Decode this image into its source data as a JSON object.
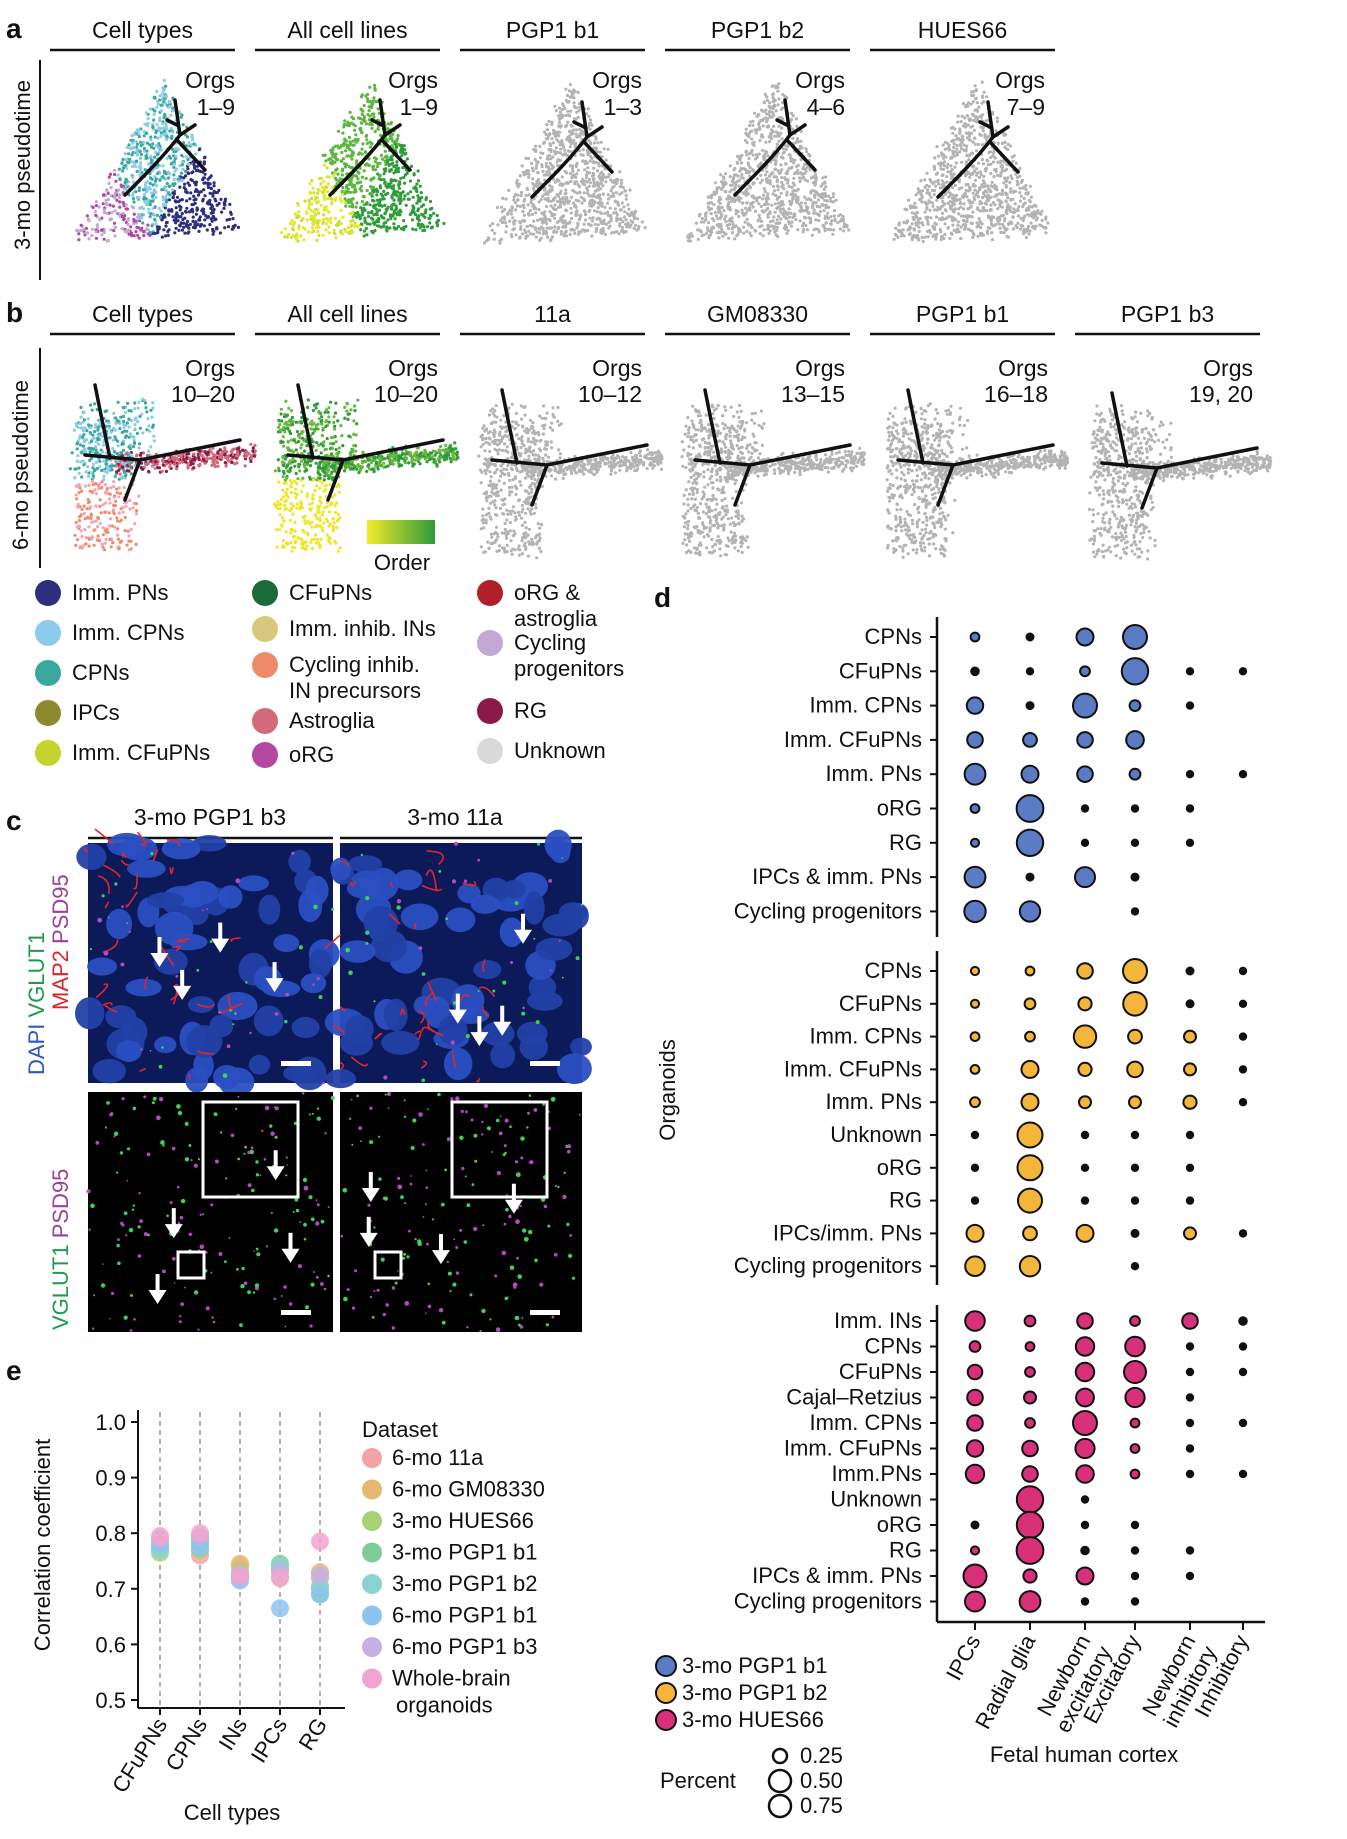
{
  "panel_letters": {
    "a": "a",
    "b": "b",
    "c": "c",
    "d": "d",
    "e": "e"
  },
  "panel_a": {
    "y_label": "3-mo pseudotime",
    "titles": [
      "Cell types",
      "All cell lines",
      "PGP1 b1",
      "PGP1 b2",
      "HUES66"
    ],
    "orgs": [
      [
        "Orgs",
        "1–9"
      ],
      [
        "Orgs",
        "1–9"
      ],
      [
        "Orgs",
        "1–3"
      ],
      [
        "Orgs",
        "4–6"
      ],
      [
        "Orgs",
        "7–9"
      ]
    ]
  },
  "panel_b": {
    "y_label": "6-mo pseudotime",
    "titles": [
      "Cell types",
      "All cell lines",
      "11a",
      "GM08330",
      "PGP1 b1",
      "PGP1 b3"
    ],
    "orgs": [
      [
        "Orgs",
        "10–20"
      ],
      [
        "Orgs",
        "10–20"
      ],
      [
        "Orgs",
        "10–12"
      ],
      [
        "Orgs",
        "13–15"
      ],
      [
        "Orgs",
        "16–18"
      ],
      [
        "Orgs",
        "19, 20"
      ]
    ],
    "order_label": "Order"
  },
  "celltype_legend": [
    {
      "lines": [
        "Imm. PNs"
      ],
      "color": "#2b2f7e"
    },
    {
      "lines": [
        "Imm. CPNs"
      ],
      "color": "#8ccbe9"
    },
    {
      "lines": [
        "CPNs"
      ],
      "color": "#3aa99b"
    },
    {
      "lines": [
        "IPCs"
      ],
      "color": "#8b8a2e"
    },
    {
      "lines": [
        "Imm. CFuPNs"
      ],
      "color": "#c3d42f"
    },
    {
      "lines": [
        "CFuPNs"
      ],
      "color": "#1a6b3a"
    },
    {
      "lines": [
        "Imm. inhib. INs"
      ],
      "color": "#d9c77c"
    },
    {
      "lines": [
        "Cycling inhib.",
        "IN precursors"
      ],
      "color": "#ee8b6a"
    },
    {
      "lines": [
        "Astroglia"
      ],
      "color": "#d26a7a"
    },
    {
      "lines": [
        "oRG"
      ],
      "color": "#b4479e"
    },
    {
      "lines": [
        "oRG &",
        "astroglia"
      ],
      "color": "#b0202a"
    },
    {
      "lines": [
        "Cycling",
        "progenitors"
      ],
      "color": "#c3a7d4"
    },
    {
      "lines": [
        "RG"
      ],
      "color": "#8b1a4a"
    },
    {
      "lines": [
        "Unknown"
      ],
      "color": "#d9d9d9"
    }
  ],
  "panel_c": {
    "titles": [
      "3-mo PGP1 b3",
      "3-mo 11a"
    ],
    "top_stain_label": [
      {
        "text": "DAPI",
        "color": "#2a56c6"
      },
      {
        "text": " VGLUT1",
        "color": "#1f9a4d"
      },
      {
        "text": " MAP2",
        "color": "#d7262b"
      },
      {
        "text": " PSD95",
        "color": "#9a3f9b"
      }
    ],
    "bottom_stain_label": [
      {
        "text": "VGLUT1",
        "color": "#1f9a4d"
      },
      {
        "text": " PSD95",
        "color": "#9a3f9b"
      }
    ]
  },
  "panel_d": {
    "title": "Fetal human cortex",
    "y_label": "Organoids",
    "columns": [
      "IPCs",
      "Radial glia",
      "Newborn excitatory",
      "Excitatory",
      "Newborn inhibitory",
      "Inhibitory"
    ],
    "column_label_lines": [
      [
        "IPCs"
      ],
      [
        "Radial glia"
      ],
      [
        "Newborn",
        "excitatory"
      ],
      [
        "Excitatory"
      ],
      [
        "Newborn",
        "inhibitory"
      ],
      [
        "Inhibitory"
      ]
    ],
    "blocks": [
      {
        "name": "3-mo PGP1 b1",
        "color": "#5b7bc4",
        "rows": [
          "CPNs",
          "CFuPNs",
          "Imm. CPNs",
          "Imm. CFuPNs",
          "Imm. PNs",
          "oRG",
          "RG",
          "IPCs & imm. PNs",
          "Cycling progenitors"
        ],
        "values": [
          [
            0.08,
            0.05,
            0.3,
            0.6,
            0,
            0
          ],
          [
            0.06,
            0.04,
            0.1,
            0.72,
            0.03,
            0.02
          ],
          [
            0.28,
            0.05,
            0.6,
            0.12,
            0.04,
            0
          ],
          [
            0.25,
            0.2,
            0.25,
            0.32,
            0,
            0
          ],
          [
            0.45,
            0.3,
            0.25,
            0.12,
            0.03,
            0.02
          ],
          [
            0.08,
            0.75,
            0.03,
            0.03,
            0.03,
            0
          ],
          [
            0.07,
            0.72,
            0.03,
            0.03,
            0.04,
            0
          ],
          [
            0.45,
            0.05,
            0.42,
            0.05,
            0,
            0
          ],
          [
            0.48,
            0.43,
            0,
            0.03,
            0,
            0
          ]
        ]
      },
      {
        "name": "3-mo PGP1 b2",
        "color": "#f4b63a",
        "rows": [
          "CPNs",
          "CFuPNs",
          "Imm. CPNs",
          "Imm. CFuPNs",
          "Imm. PNs",
          "Unknown",
          "oRG",
          "RG",
          "IPCs/imm. PNs",
          "Cycling progenitors"
        ],
        "values": [
          [
            0.07,
            0.08,
            0.25,
            0.6,
            0.05,
            0.03
          ],
          [
            0.07,
            0.12,
            0.18,
            0.58,
            0.05,
            0.03
          ],
          [
            0.08,
            0.1,
            0.52,
            0.2,
            0.15,
            0.03
          ],
          [
            0.08,
            0.3,
            0.18,
            0.25,
            0.15,
            0.03
          ],
          [
            0.1,
            0.3,
            0.15,
            0.15,
            0.18,
            0.03
          ],
          [
            0.03,
            0.65,
            0.03,
            0.04,
            0.04,
            0
          ],
          [
            0.03,
            0.65,
            0.03,
            0.03,
            0.03,
            0
          ],
          [
            0.04,
            0.6,
            0.03,
            0.03,
            0.03,
            0
          ],
          [
            0.3,
            0.2,
            0.3,
            0.05,
            0.15,
            0.03
          ],
          [
            0.4,
            0.43,
            0,
            0.04,
            0,
            0
          ]
        ]
      },
      {
        "name": "3-mo HUES66",
        "color": "#d8317a",
        "rows": [
          "Imm. INs",
          "CPNs",
          "CFuPNs",
          "Cajal–Retzius",
          "Imm. CPNs",
          "Imm. CFuPNs",
          "Imm.PNs",
          "Unknown",
          "oRG",
          "RG",
          "IPCs & imm. PNs",
          "Cycling progenitors"
        ],
        "values": [
          [
            0.4,
            0.12,
            0.25,
            0.1,
            0.25,
            0.06
          ],
          [
            0.12,
            0.08,
            0.35,
            0.4,
            0.03,
            0.03
          ],
          [
            0.22,
            0.1,
            0.35,
            0.5,
            0.03,
            0.03
          ],
          [
            0.25,
            0.15,
            0.33,
            0.38,
            0.03,
            0
          ],
          [
            0.25,
            0.1,
            0.6,
            0.08,
            0.03,
            0.03
          ],
          [
            0.28,
            0.25,
            0.38,
            0.08,
            0.03,
            0
          ],
          [
            0.35,
            0.25,
            0.32,
            0.08,
            0.03,
            0.03
          ],
          [
            0,
            0.72,
            0.03,
            0,
            0,
            0
          ],
          [
            0.05,
            0.72,
            0.03,
            0.03,
            0,
            0
          ],
          [
            0.07,
            0.75,
            0.06,
            0.03,
            0.03,
            0
          ],
          [
            0.55,
            0.18,
            0.3,
            0.03,
            0.03,
            0
          ],
          [
            0.42,
            0.45,
            0.02,
            0.03,
            0,
            0
          ]
        ]
      }
    ],
    "size_legend": {
      "title": "Percent",
      "labels": [
        "0.25",
        "0.50",
        "0.75"
      ]
    }
  },
  "chart_data": {
    "type": "scatter",
    "xlabel": "Cell types",
    "ylabel": "Correlation coefficient",
    "categories": [
      "CFuPNs",
      "CPNs",
      "INs",
      "IPCs",
      "RG"
    ],
    "ylim": [
      0.5,
      1.0
    ],
    "yticks": [
      "0.5",
      "0.6",
      "0.7",
      "0.8",
      "0.9",
      "1.0"
    ],
    "legend_title": "Dataset",
    "grid": "dashed vertical lines at categories",
    "series": [
      {
        "name": "6-mo 11a",
        "color": "#f3a3a6",
        "values": [
          0.78,
          0.76,
          0.74,
          0.72,
          0.72
        ]
      },
      {
        "name": "6-mo GM08330",
        "color": "#e3b96e",
        "values": [
          0.79,
          0.78,
          0.745,
          0.72,
          0.73
        ]
      },
      {
        "name": "3-mo HUES66",
        "color": "#a8d176",
        "values": [
          0.765,
          0.77,
          0.73,
          0.735,
          0.69
        ]
      },
      {
        "name": "3-mo PGP1 b1",
        "color": "#7fcc98",
        "values": [
          0.775,
          0.785,
          0.725,
          0.745,
          0.7
        ]
      },
      {
        "name": "3-mo PGP1 b2",
        "color": "#8ad3d0",
        "values": [
          0.77,
          0.79,
          0.72,
          0.74,
          0.705
        ]
      },
      {
        "name": "6-mo PGP1 b1",
        "color": "#8cc4ef",
        "values": [
          0.78,
          0.775,
          0.715,
          0.665,
          0.69
        ]
      },
      {
        "name": "6-mo PGP1 b3",
        "color": "#c5b0e3",
        "values": [
          0.79,
          0.795,
          0.72,
          0.73,
          0.725
        ]
      },
      {
        "name": "Whole-brain organoids",
        "legend_lines": [
          "Whole-brain",
          "organoids"
        ],
        "color": "#f2a4d0",
        "values": [
          0.795,
          0.8,
          0.725,
          0.72,
          0.785
        ]
      }
    ]
  }
}
